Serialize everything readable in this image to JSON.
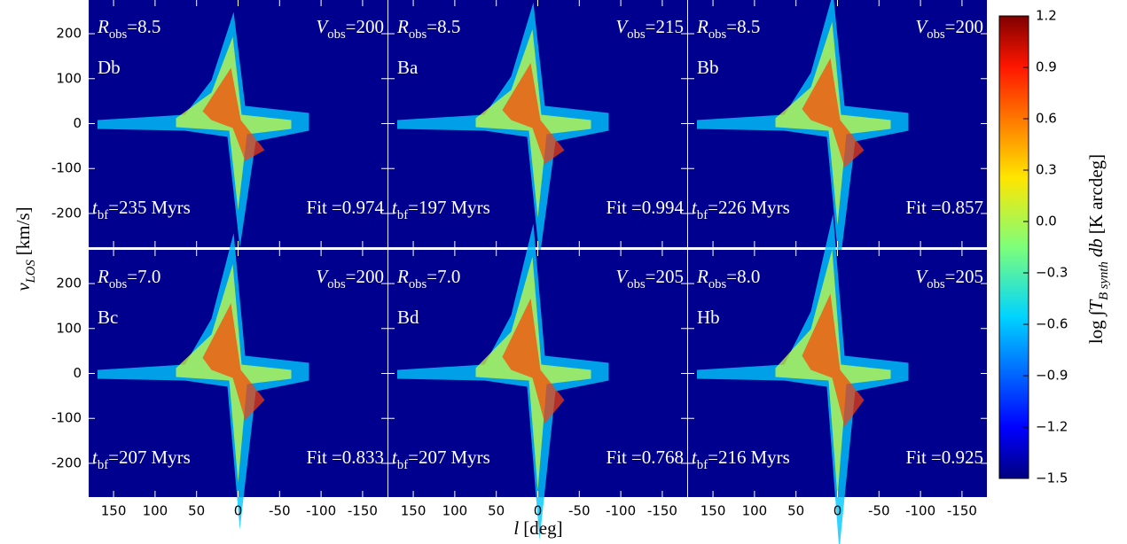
{
  "chart_data": {
    "type": "heatmap-grid",
    "xlabel": {
      "base": "l",
      "unit": "[deg]"
    },
    "ylabel": {
      "base": "v",
      "sub": "LOS",
      "unit": "[km/s]"
    },
    "colorbar_label": {
      "pre": "log",
      "integral": "∫",
      "base": "T",
      "sub": "B synth",
      "mid": "db",
      "unit": "[K arcdeg]"
    },
    "annotation_labels": {
      "r": "R",
      "r_sub": "obs",
      "v": "V",
      "v_sub": "obs",
      "t": "t",
      "t_sub": "bf",
      "fit": "Fit",
      "eq": "=",
      "unit": "Myrs"
    },
    "xlim": [
      180,
      -180
    ],
    "xticks": [
      150,
      100,
      50,
      0,
      -50,
      -100,
      -150
    ],
    "ylim": [
      -275,
      275
    ],
    "yticks": [
      -200,
      -100,
      0,
      100,
      200
    ],
    "colorbar": {
      "lim": [
        -1.5,
        1.2
      ],
      "colormap": "jet",
      "ticks": [
        {
          "value": -1.5,
          "label": "−1.5"
        },
        {
          "value": -1.2,
          "label": "−1.2"
        },
        {
          "value": -0.9,
          "label": "−0.9"
        },
        {
          "value": -0.6,
          "label": "−0.6"
        },
        {
          "value": -0.3,
          "label": "−0.3"
        },
        {
          "value": 0,
          "label": "0.0"
        },
        {
          "value": 0.3,
          "label": "0.3"
        },
        {
          "value": 0.6,
          "label": "0.6"
        },
        {
          "value": 0.9,
          "label": "0.9"
        },
        {
          "value": 1.2,
          "label": "1.2"
        }
      ]
    },
    "background": "#00008f",
    "panels": [
      {
        "model": "Db",
        "r_obs": "8.5",
        "v_obs": 200,
        "t_bf": 235,
        "fit": 0.974
      },
      {
        "model": "Ba",
        "r_obs": "8.5",
        "v_obs": 215,
        "t_bf": 197,
        "fit": 0.994
      },
      {
        "model": "Bb",
        "r_obs": "8.5",
        "v_obs": 200,
        "t_bf": 226,
        "fit": 0.857
      },
      {
        "model": "Bc",
        "r_obs": "7.0",
        "v_obs": 200,
        "t_bf": 207,
        "fit": 0.833
      },
      {
        "model": "Bd",
        "r_obs": "7.0",
        "v_obs": 205,
        "t_bf": 207,
        "fit": 0.768
      },
      {
        "model": "Hb",
        "r_obs": "8.0",
        "v_obs": 205,
        "t_bf": 216,
        "fit": 0.925
      }
    ]
  }
}
